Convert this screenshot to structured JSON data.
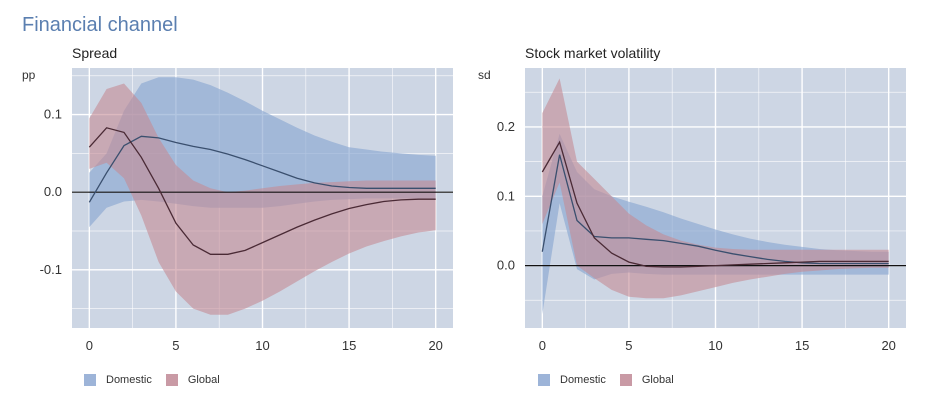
{
  "title": "Financial channel",
  "colors": {
    "plot_bg": "#cdd6e4",
    "grid": "#ffffff",
    "domestic_band": "#8aa7d1",
    "global_band": "#c48a95",
    "domestic_line": "#3a4f6e",
    "global_line": "#4a2a35",
    "zero_line": "#111111"
  },
  "legend": [
    {
      "label": "Domestic",
      "color": "#9db4d8"
    },
    {
      "label": "Global",
      "color": "#c99aa5"
    }
  ],
  "chart_data": [
    {
      "type": "area",
      "title": "Spread",
      "ylabel": "pp",
      "xlabel": "",
      "xlim": [
        -1,
        21
      ],
      "ylim": [
        -0.175,
        0.16
      ],
      "xticks": [
        0,
        5,
        10,
        15,
        20
      ],
      "yticks": [
        -0.1,
        0.0,
        0.1
      ],
      "ytick_labels": [
        "-0.1",
        "0.0",
        "0.1"
      ],
      "grid": true,
      "legend_position": "bottom-left",
      "x": [
        0,
        1,
        2,
        3,
        4,
        5,
        6,
        7,
        8,
        9,
        10,
        11,
        12,
        13,
        14,
        15,
        16,
        17,
        18,
        19,
        20
      ],
      "series": [
        {
          "name": "Domestic",
          "median": [
            -0.013,
            0.025,
            0.06,
            0.072,
            0.07,
            0.064,
            0.059,
            0.055,
            0.049,
            0.042,
            0.034,
            0.026,
            0.018,
            0.012,
            0.008,
            0.006,
            0.005,
            0.005,
            0.005,
            0.005,
            0.005
          ],
          "lower": [
            -0.045,
            -0.02,
            -0.012,
            -0.01,
            -0.012,
            -0.015,
            -0.018,
            -0.02,
            -0.02,
            -0.02,
            -0.02,
            -0.018,
            -0.015,
            -0.012,
            -0.01,
            -0.009,
            -0.008,
            -0.008,
            -0.008,
            -0.008,
            -0.008
          ],
          "upper": [
            0.025,
            0.05,
            0.105,
            0.14,
            0.148,
            0.148,
            0.145,
            0.138,
            0.128,
            0.117,
            0.105,
            0.094,
            0.083,
            0.073,
            0.065,
            0.058,
            0.055,
            0.052,
            0.05,
            0.048,
            0.047
          ]
        },
        {
          "name": "Global",
          "median": [
            0.058,
            0.083,
            0.077,
            0.045,
            0.005,
            -0.04,
            -0.068,
            -0.08,
            -0.08,
            -0.075,
            -0.065,
            -0.055,
            -0.045,
            -0.036,
            -0.028,
            -0.021,
            -0.016,
            -0.012,
            -0.01,
            -0.009,
            -0.009
          ],
          "lower": [
            0.03,
            0.038,
            0.018,
            -0.03,
            -0.09,
            -0.128,
            -0.15,
            -0.158,
            -0.158,
            -0.15,
            -0.14,
            -0.128,
            -0.115,
            -0.102,
            -0.09,
            -0.079,
            -0.07,
            -0.063,
            -0.057,
            -0.052,
            -0.049
          ],
          "upper": [
            0.095,
            0.133,
            0.14,
            0.115,
            0.07,
            0.035,
            0.015,
            0.005,
            0.0,
            0.002,
            0.005,
            0.008,
            0.01,
            0.012,
            0.013,
            0.014,
            0.015,
            0.015,
            0.015,
            0.015,
            0.015
          ]
        }
      ]
    },
    {
      "type": "area",
      "title": "Stock market volatility",
      "ylabel": "sd",
      "xlabel": "",
      "xlim": [
        -1,
        21
      ],
      "ylim": [
        -0.09,
        0.285
      ],
      "xticks": [
        0,
        5,
        10,
        15,
        20
      ],
      "yticks": [
        0.0,
        0.1,
        0.2
      ],
      "ytick_labels": [
        "0.0",
        "0.1",
        "0.2"
      ],
      "grid": true,
      "legend_position": "bottom-left",
      "x": [
        0,
        1,
        2,
        3,
        4,
        5,
        6,
        7,
        8,
        9,
        10,
        11,
        12,
        13,
        14,
        15,
        16,
        17,
        18,
        19,
        20
      ],
      "series": [
        {
          "name": "Domestic",
          "median": [
            0.02,
            0.16,
            0.065,
            0.042,
            0.04,
            0.04,
            0.038,
            0.036,
            0.032,
            0.028,
            0.022,
            0.017,
            0.013,
            0.009,
            0.006,
            0.004,
            0.003,
            0.003,
            0.003,
            0.003,
            0.003
          ],
          "lower": [
            -0.07,
            0.09,
            -0.005,
            -0.02,
            -0.012,
            -0.01,
            -0.012,
            -0.013,
            -0.013,
            -0.013,
            -0.013,
            -0.013,
            -0.013,
            -0.013,
            -0.013,
            -0.013,
            -0.013,
            -0.013,
            -0.013,
            -0.013,
            -0.013
          ],
          "upper": [
            0.1,
            0.19,
            0.135,
            0.11,
            0.1,
            0.092,
            0.085,
            0.077,
            0.068,
            0.06,
            0.052,
            0.045,
            0.039,
            0.034,
            0.03,
            0.027,
            0.024,
            0.022,
            0.021,
            0.02,
            0.02
          ]
        },
        {
          "name": "Global",
          "median": [
            0.135,
            0.178,
            0.09,
            0.04,
            0.018,
            0.005,
            -0.001,
            -0.002,
            -0.002,
            -0.001,
            0.0,
            0.001,
            0.002,
            0.003,
            0.004,
            0.005,
            0.006,
            0.006,
            0.006,
            0.006,
            0.006
          ],
          "lower": [
            0.06,
            0.12,
            0.0,
            -0.018,
            -0.035,
            -0.045,
            -0.047,
            -0.047,
            -0.043,
            -0.037,
            -0.031,
            -0.025,
            -0.02,
            -0.016,
            -0.012,
            -0.009,
            -0.007,
            -0.005,
            -0.004,
            -0.003,
            -0.003
          ],
          "upper": [
            0.22,
            0.27,
            0.15,
            0.125,
            0.1,
            0.075,
            0.058,
            0.045,
            0.036,
            0.03,
            0.026,
            0.024,
            0.023,
            0.023,
            0.023,
            0.023,
            0.023,
            0.023,
            0.023,
            0.023,
            0.023
          ]
        }
      ]
    }
  ]
}
